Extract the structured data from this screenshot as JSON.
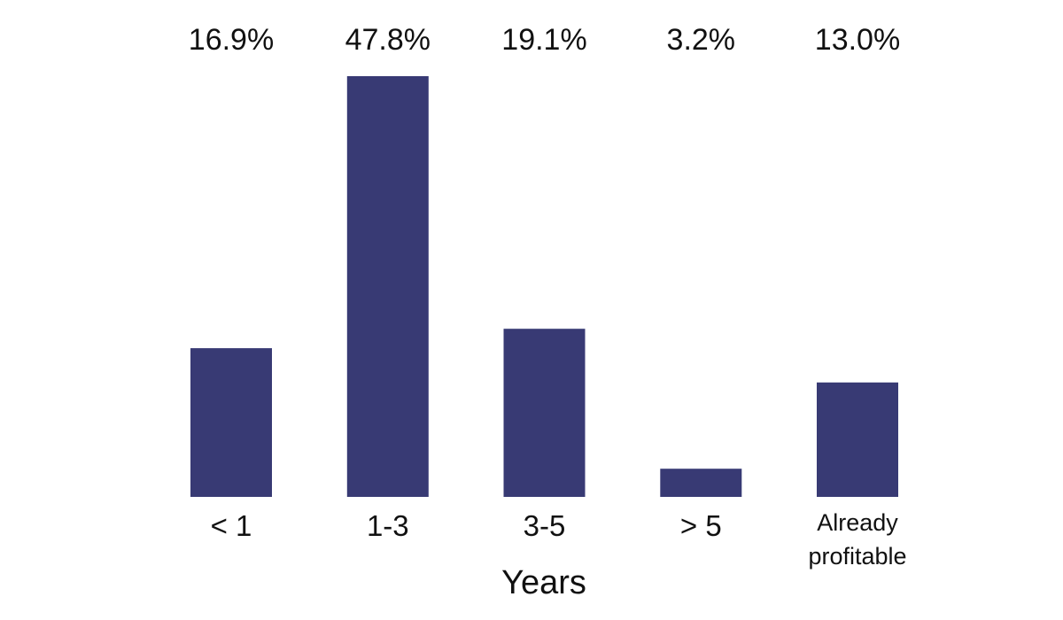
{
  "chart_data": {
    "type": "bar",
    "categories": [
      "< 1",
      "1-3",
      "3-5",
      "> 5",
      "Already profitable"
    ],
    "category_lines": [
      [
        "< 1"
      ],
      [
        "1-3"
      ],
      [
        "3-5"
      ],
      [
        "> 5"
      ],
      [
        "Already",
        "profitable"
      ]
    ],
    "values": [
      16.9,
      47.8,
      19.1,
      3.2,
      13.0
    ],
    "value_labels": [
      "16.9%",
      "47.8%",
      "19.1%",
      "3.2%",
      "13.0%"
    ],
    "unit": "%",
    "title": "",
    "xlabel": "Years",
    "ylabel": "",
    "ylim": [
      0,
      47.8
    ],
    "grid": false,
    "legend": "none",
    "bar_color": "#383a74"
  }
}
